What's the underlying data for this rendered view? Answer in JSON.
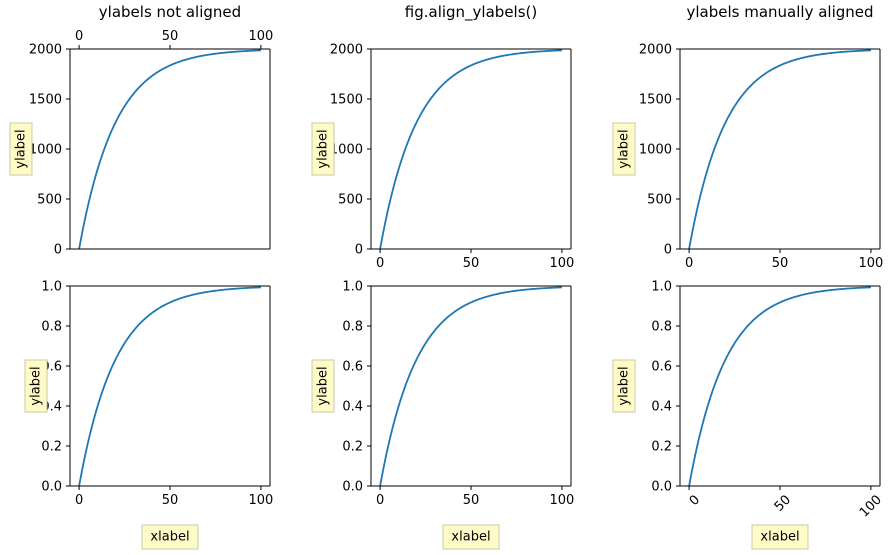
{
  "colors": {
    "line": "#1f77b4",
    "label_box_fill": "#fffbc7",
    "label_box_edge": "#c8c8a8",
    "axis": "#000000"
  },
  "labels": {
    "ylabel": "ylabel",
    "xlabel": "xlabel"
  },
  "chart_data": [
    {
      "type": "line",
      "title": "ylabels not aligned",
      "xlabel": "",
      "ylabel": "ylabel",
      "xlim": [
        -5,
        105
      ],
      "ylim": [
        0,
        2000
      ],
      "x_ticks": [
        0,
        50,
        100
      ],
      "x_tick_position": "top",
      "y_ticks": [
        0,
        500,
        1000,
        1500,
        2000
      ],
      "y_tick_labels": [
        "0",
        "500",
        "1000",
        "1500",
        "2000"
      ],
      "series": [
        {
          "function": "2000*(1-exp(-x/20))",
          "x": [
            0,
            10,
            20,
            30,
            40,
            50,
            60,
            70,
            80,
            90,
            100
          ],
          "y": [
            0,
            787,
            1264,
            1554,
            1729,
            1836,
            1900,
            1940,
            1963,
            1978,
            1987
          ]
        }
      ]
    },
    {
      "type": "line",
      "title": "fig.align_ylabels()",
      "xlabel": "",
      "ylabel": "ylabel",
      "xlim": [
        -5,
        105
      ],
      "ylim": [
        0,
        2000
      ],
      "x_ticks": [
        0,
        50,
        100
      ],
      "x_tick_position": "bottom",
      "y_ticks": [
        0,
        500,
        1000,
        1500,
        2000
      ],
      "y_tick_labels": [
        "0",
        "500",
        "1000",
        "1500",
        "2000"
      ],
      "series": [
        {
          "function": "2000*(1-exp(-x/20))",
          "x": [
            0,
            10,
            20,
            30,
            40,
            50,
            60,
            70,
            80,
            90,
            100
          ],
          "y": [
            0,
            787,
            1264,
            1554,
            1729,
            1836,
            1900,
            1940,
            1963,
            1978,
            1987
          ]
        }
      ]
    },
    {
      "type": "line",
      "title": "ylabels manually aligned",
      "xlabel": "",
      "ylabel": "ylabel",
      "xlim": [
        -5,
        105
      ],
      "ylim": [
        0,
        2000
      ],
      "x_ticks": [
        0,
        50,
        100
      ],
      "x_tick_position": "bottom",
      "y_ticks": [
        0,
        500,
        1000,
        1500,
        2000
      ],
      "y_tick_labels": [
        "0",
        "500",
        "1000",
        "1500",
        "2000"
      ],
      "series": [
        {
          "function": "2000*(1-exp(-x/20))",
          "x": [
            0,
            10,
            20,
            30,
            40,
            50,
            60,
            70,
            80,
            90,
            100
          ],
          "y": [
            0,
            787,
            1264,
            1554,
            1729,
            1836,
            1900,
            1940,
            1963,
            1978,
            1987
          ]
        }
      ]
    },
    {
      "type": "line",
      "title": "",
      "xlabel": "xlabel",
      "ylabel": "ylabel",
      "xlim": [
        -5,
        105
      ],
      "ylim": [
        0,
        1
      ],
      "x_ticks": [
        0,
        50,
        100
      ],
      "x_tick_position": "bottom",
      "y_ticks": [
        0,
        0.2,
        0.4,
        0.6,
        0.8,
        1.0
      ],
      "y_tick_labels": [
        "0.0",
        "0.2",
        "0.4",
        "0.6",
        "0.8",
        "1.0"
      ],
      "series": [
        {
          "function": "1-exp(-x/20)",
          "x": [
            0,
            10,
            20,
            30,
            40,
            50,
            60,
            70,
            80,
            90,
            100
          ],
          "y": [
            0,
            0.393,
            0.632,
            0.777,
            0.865,
            0.918,
            0.95,
            0.97,
            0.982,
            0.989,
            0.993
          ]
        }
      ]
    },
    {
      "type": "line",
      "title": "",
      "xlabel": "xlabel",
      "ylabel": "ylabel",
      "xlim": [
        -5,
        105
      ],
      "ylim": [
        0,
        1
      ],
      "x_ticks": [
        0,
        50,
        100
      ],
      "x_tick_position": "bottom",
      "y_ticks": [
        0,
        0.2,
        0.4,
        0.6,
        0.8,
        1.0
      ],
      "y_tick_labels": [
        "0.0",
        "0.2",
        "0.4",
        "0.6",
        "0.8",
        "1.0"
      ],
      "series": [
        {
          "function": "1-exp(-x/20)",
          "x": [
            0,
            10,
            20,
            30,
            40,
            50,
            60,
            70,
            80,
            90,
            100
          ],
          "y": [
            0,
            0.393,
            0.632,
            0.777,
            0.865,
            0.918,
            0.95,
            0.97,
            0.982,
            0.989,
            0.993
          ]
        }
      ]
    },
    {
      "type": "line",
      "title": "",
      "xlabel": "xlabel",
      "ylabel": "ylabel",
      "xlim": [
        -5,
        105
      ],
      "ylim": [
        0,
        1
      ],
      "x_ticks": [
        0,
        50,
        100
      ],
      "x_tick_position": "bottom",
      "x_tick_rotation": 45,
      "y_ticks": [
        0,
        0.2,
        0.4,
        0.6,
        0.8,
        1.0
      ],
      "y_tick_labels": [
        "0.0",
        "0.2",
        "0.4",
        "0.6",
        "0.8",
        "1.0"
      ],
      "series": [
        {
          "function": "1-exp(-x/20)",
          "x": [
            0,
            10,
            20,
            30,
            40,
            50,
            60,
            70,
            80,
            90,
            100
          ],
          "y": [
            0,
            0.393,
            0.632,
            0.777,
            0.865,
            0.918,
            0.95,
            0.97,
            0.982,
            0.989,
            0.993
          ]
        }
      ]
    }
  ]
}
